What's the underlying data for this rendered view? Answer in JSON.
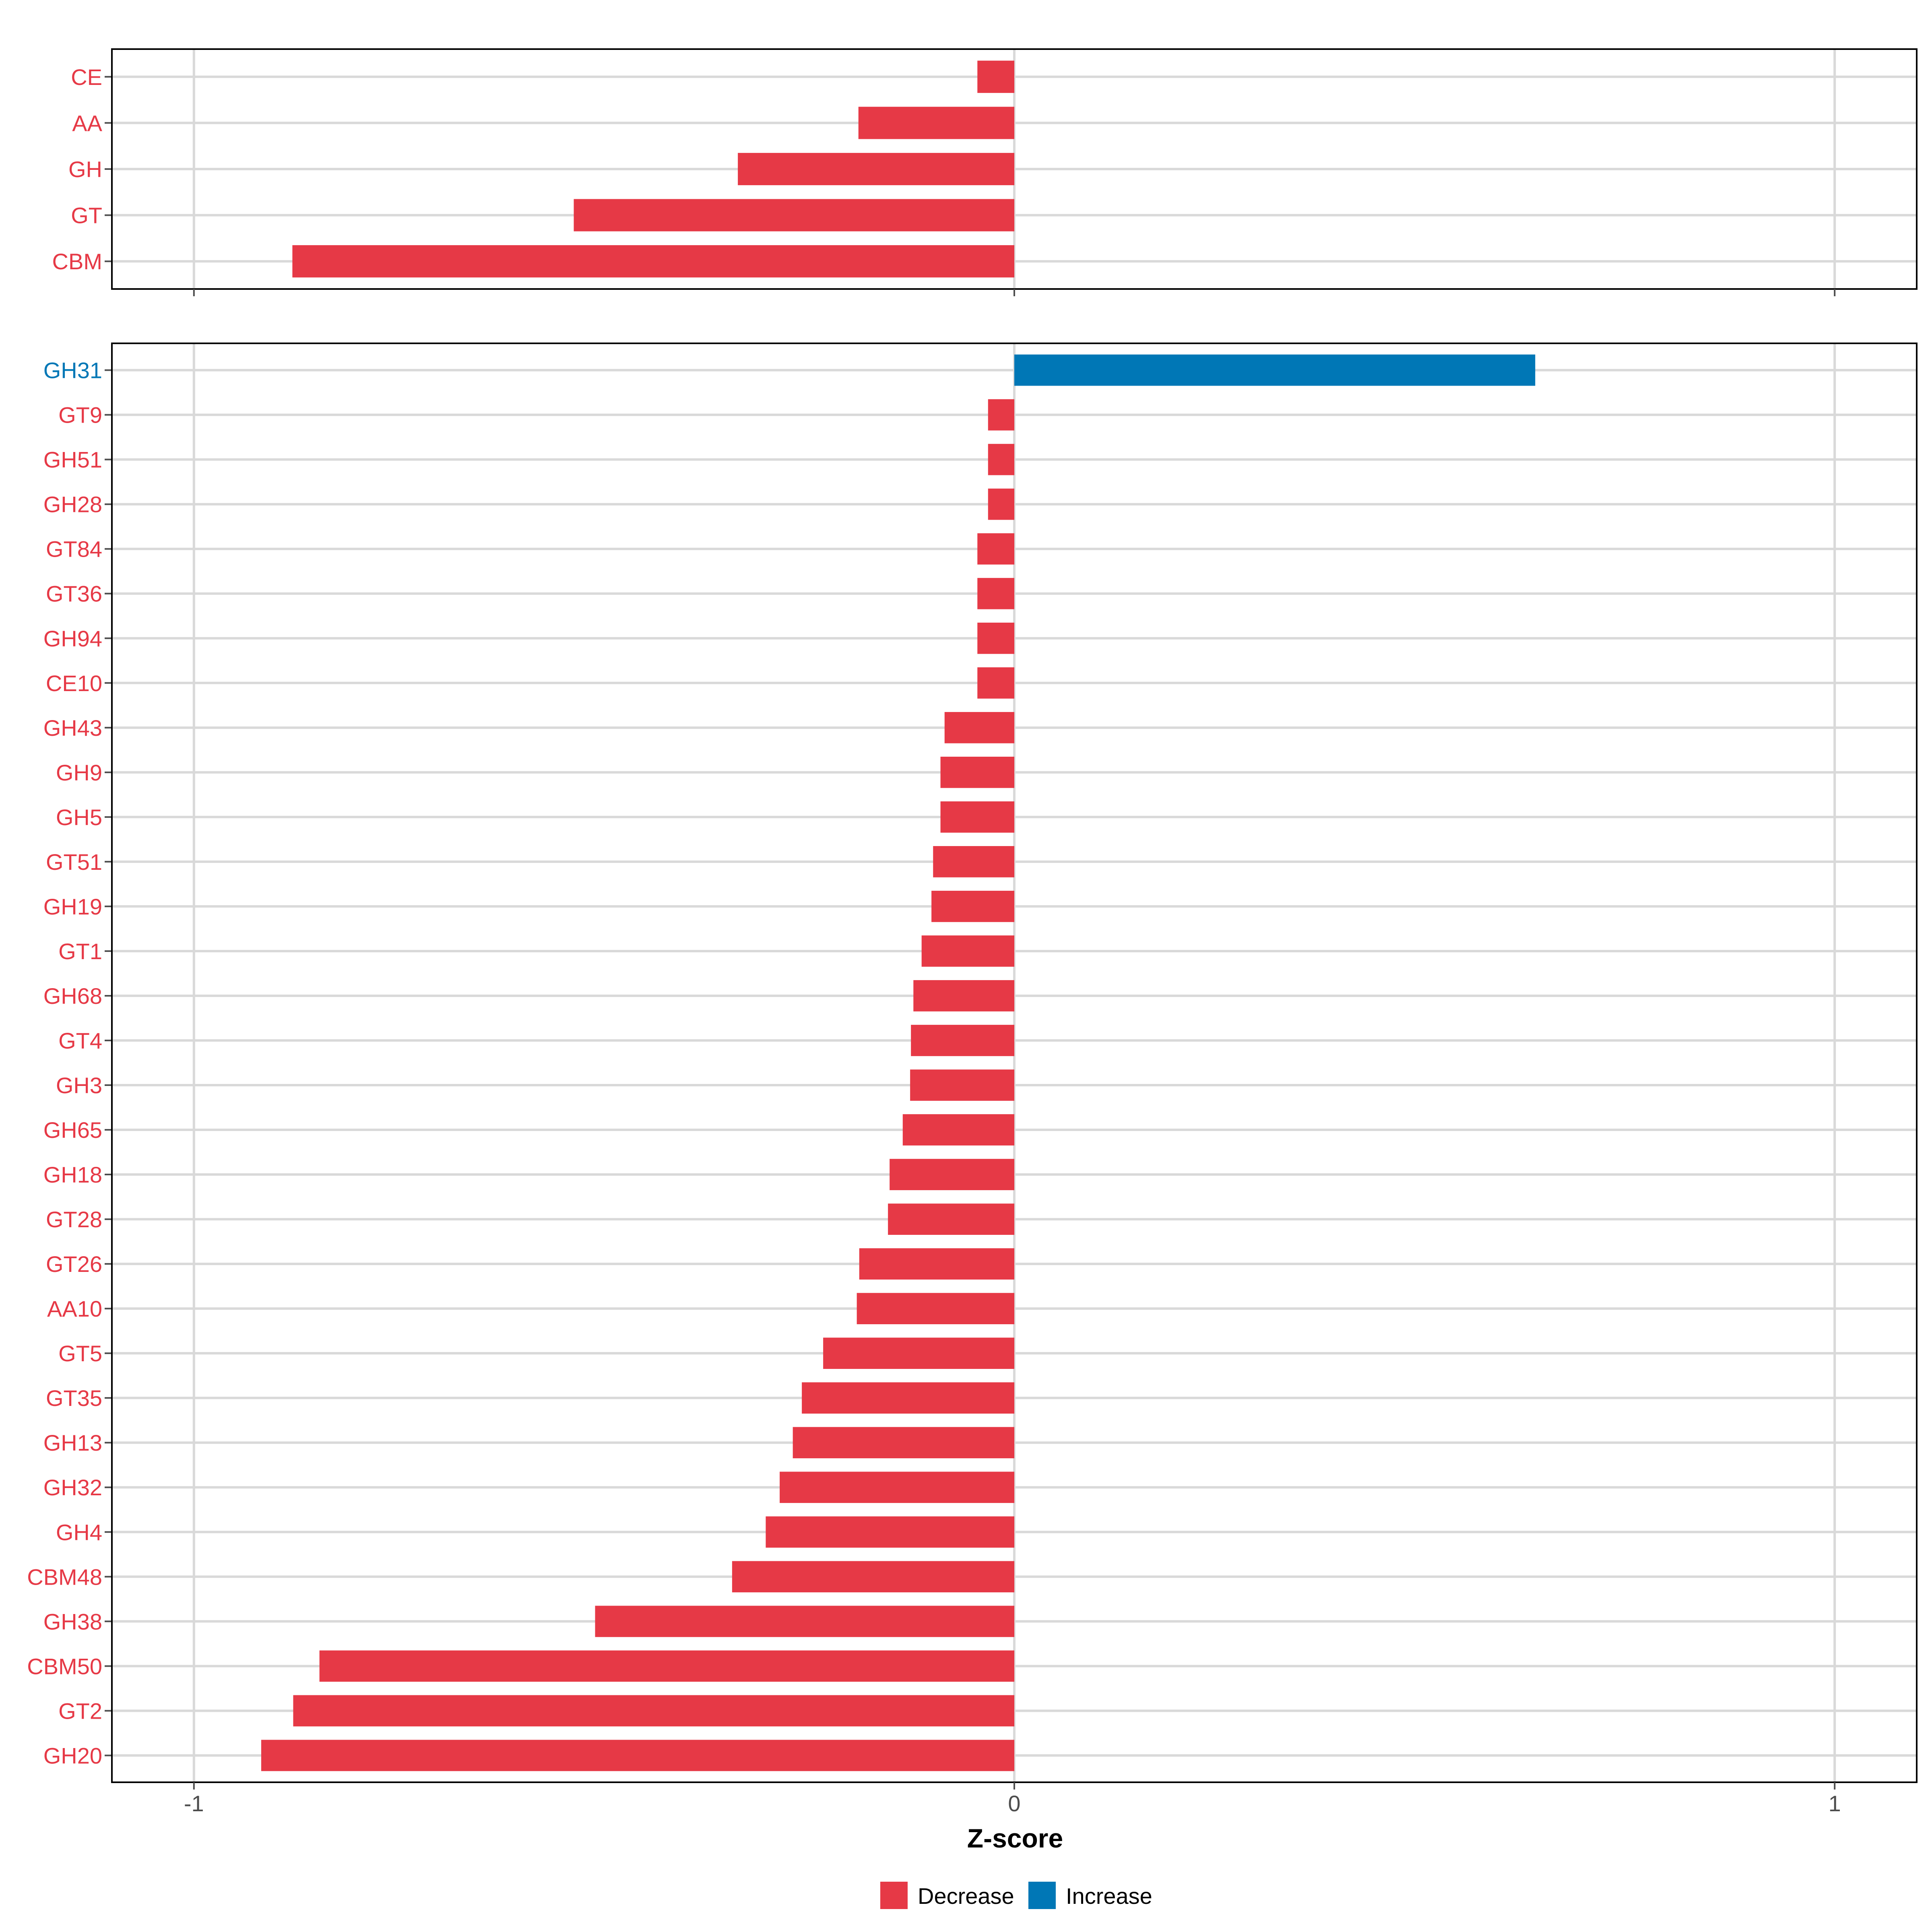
{
  "colors": {
    "decrease": "#E63946",
    "increase": "#0077B6",
    "grid": "#D9D9D9",
    "axis": "#000000",
    "tick_text": "#4D4D4D"
  },
  "chart_data": [
    {
      "type": "bar",
      "orientation": "horizontal",
      "panel": "top",
      "categories": [
        "CE",
        "AA",
        "GH",
        "GT",
        "CBM"
      ],
      "values": [
        -0.045,
        -0.19,
        -0.337,
        -0.537,
        -0.88
      ],
      "xlim": [
        -1.1,
        1.1
      ],
      "xticks": [
        -1,
        0,
        1
      ],
      "grid": true
    },
    {
      "type": "bar",
      "orientation": "horizontal",
      "panel": "bottom",
      "categories": [
        "GH31",
        "GT9",
        "GH51",
        "GH28",
        "GT84",
        "GT36",
        "GH94",
        "CE10",
        "GH43",
        "GH9",
        "GH5",
        "GT51",
        "GH19",
        "GT1",
        "GH68",
        "GT4",
        "GH3",
        "GH65",
        "GH18",
        "GT28",
        "GT26",
        "AA10",
        "GT5",
        "GT35",
        "GH13",
        "GH32",
        "GH4",
        "CBM48",
        "GH38",
        "CBM50",
        "GT2",
        "GH20"
      ],
      "values": [
        0.635,
        -0.032,
        -0.032,
        -0.032,
        -0.045,
        -0.045,
        -0.045,
        -0.045,
        -0.085,
        -0.09,
        -0.09,
        -0.099,
        -0.101,
        -0.113,
        -0.123,
        -0.126,
        -0.127,
        -0.136,
        -0.152,
        -0.154,
        -0.189,
        -0.192,
        -0.233,
        -0.259,
        -0.27,
        -0.286,
        -0.303,
        -0.344,
        -0.511,
        -0.847,
        -0.879,
        -0.918
      ],
      "xlim": [
        -1.1,
        1.1
      ],
      "xticks": [
        -1,
        0,
        1
      ],
      "xtick_labels": [
        "-1",
        "0",
        "1"
      ],
      "xlabel": "Z-score",
      "grid": true
    }
  ],
  "legend": {
    "position": "bottom",
    "items": [
      {
        "label": "Decrease",
        "key": "decrease"
      },
      {
        "label": "Increase",
        "key": "increase"
      }
    ]
  }
}
